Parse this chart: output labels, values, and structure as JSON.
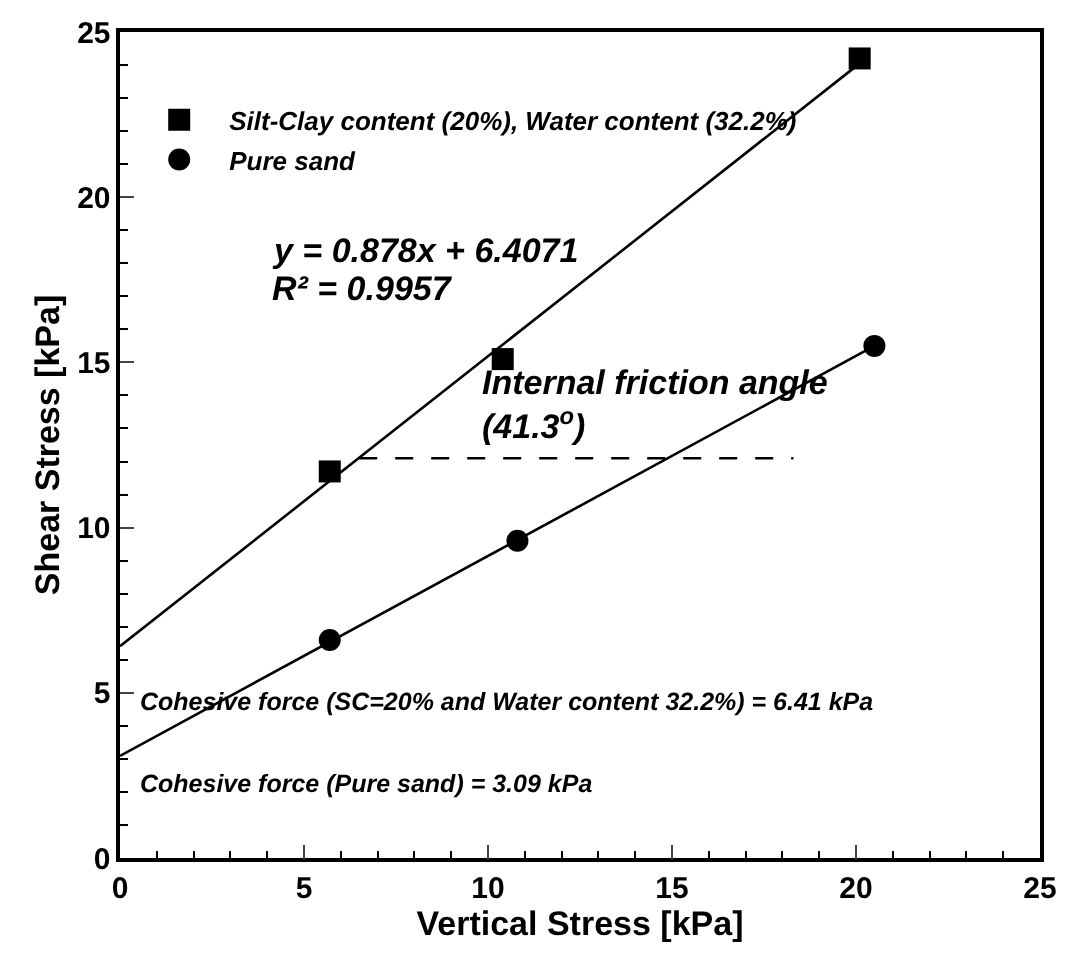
{
  "chart_data": {
    "type": "scatter",
    "xlabel": "Vertical Stress [kPa]",
    "ylabel": "Shear Stress [kPa]",
    "xlim": [
      0,
      25
    ],
    "xticks": [
      0,
      5,
      10,
      15,
      20,
      25
    ],
    "ylim": [
      0,
      25
    ],
    "yticks": [
      0,
      5,
      10,
      15,
      20,
      25
    ],
    "legend": "top left",
    "series": [
      {
        "name": "Silt-Clay content (20%), Water content (32.2%)",
        "color": "#000000",
        "marker": "square",
        "x": [
          5.7,
          10.4,
          20.1
        ],
        "values": [
          11.7,
          15.1,
          24.2
        ]
      },
      {
        "name": "Pure sand",
        "color": "#000000",
        "marker": "circle",
        "x": [
          5.7,
          10.8,
          20.5
        ],
        "values": [
          6.6,
          9.6,
          15.5
        ]
      },
      {
        "type": "line",
        "color": "#000000",
        "marker": "none",
        "x": [
          0,
          20.1
        ],
        "values": [
          6.41,
          24.05
        ]
      },
      {
        "type": "line",
        "color": "#000000",
        "marker": "none",
        "x": [
          0,
          20.5
        ],
        "values": [
          3.09,
          15.5
        ]
      },
      {
        "type": "line",
        "color": "#000000",
        "marker": "none",
        "line_style": "dashed",
        "x": [
          6.5,
          18.3
        ],
        "values": [
          12.1,
          12.1
        ]
      }
    ],
    "annotations": [
      "y = 0.878x + 6.4071",
      "R² = 0.9957",
      "Internal friction angle",
      "(41.3$^{o}$)",
      "Cohesive force (SC=20% and Water content 32.2%) = 6.41 kPa",
      "Cohesive force (Pure sand) = 3.09 kPa"
    ]
  }
}
